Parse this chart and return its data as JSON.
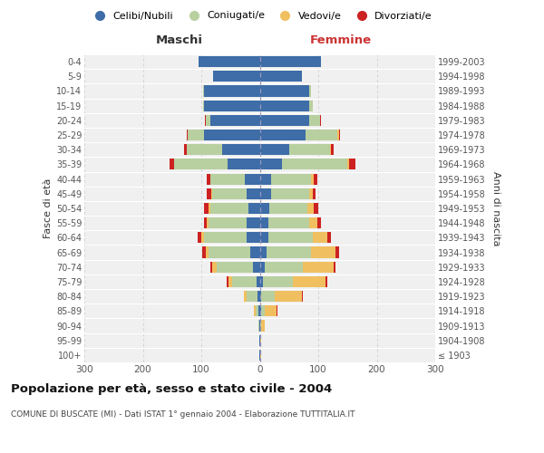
{
  "age_groups": [
    "100+",
    "95-99",
    "90-94",
    "85-89",
    "80-84",
    "75-79",
    "70-74",
    "65-69",
    "60-64",
    "55-59",
    "50-54",
    "45-49",
    "40-44",
    "35-39",
    "30-34",
    "25-29",
    "20-24",
    "15-19",
    "10-14",
    "5-9",
    "0-4"
  ],
  "birth_years": [
    "≤ 1903",
    "1904-1908",
    "1909-1913",
    "1914-1918",
    "1919-1923",
    "1924-1928",
    "1929-1933",
    "1934-1938",
    "1939-1943",
    "1944-1948",
    "1949-1953",
    "1954-1958",
    "1959-1963",
    "1964-1968",
    "1969-1973",
    "1974-1978",
    "1979-1983",
    "1984-1988",
    "1989-1993",
    "1994-1998",
    "1999-2003"
  ],
  "maschi": {
    "celibi": [
      1,
      1,
      1,
      2,
      4,
      6,
      12,
      16,
      22,
      22,
      20,
      22,
      26,
      55,
      65,
      95,
      85,
      95,
      95,
      80,
      105
    ],
    "coniugati": [
      0,
      0,
      1,
      5,
      18,
      42,
      62,
      72,
      73,
      65,
      65,
      60,
      58,
      92,
      60,
      28,
      8,
      2,
      2,
      0,
      0
    ],
    "vedovi": [
      0,
      0,
      1,
      3,
      5,
      6,
      7,
      5,
      5,
      3,
      2,
      1,
      1,
      0,
      0,
      0,
      0,
      0,
      0,
      0,
      0
    ],
    "divorziati": [
      0,
      0,
      0,
      0,
      0,
      3,
      4,
      6,
      6,
      6,
      8,
      8,
      6,
      8,
      5,
      2,
      1,
      0,
      0,
      0,
      0
    ]
  },
  "femmine": {
    "nubili": [
      1,
      1,
      1,
      2,
      3,
      5,
      8,
      12,
      14,
      14,
      17,
      20,
      20,
      38,
      50,
      78,
      85,
      85,
      85,
      72,
      105
    ],
    "coniugate": [
      0,
      0,
      2,
      6,
      22,
      52,
      66,
      76,
      76,
      70,
      65,
      65,
      68,
      112,
      70,
      55,
      18,
      5,
      2,
      0,
      0
    ],
    "vedove": [
      1,
      2,
      6,
      20,
      47,
      56,
      52,
      42,
      26,
      15,
      10,
      5,
      5,
      3,
      2,
      2,
      0,
      0,
      0,
      0,
      0
    ],
    "divorziate": [
      0,
      0,
      0,
      2,
      2,
      3,
      3,
      5,
      5,
      5,
      8,
      5,
      5,
      10,
      5,
      2,
      1,
      0,
      0,
      0,
      0
    ]
  },
  "colors": {
    "celibi_nubili": "#3e6da8",
    "coniugati_e": "#b8cfa0",
    "vedovi_e": "#f0c060",
    "divorziati_e": "#cc2222"
  },
  "xlim": 300,
  "title": "Popolazione per età, sesso e stato civile - 2004",
  "subtitle": "COMUNE DI BUSCATE (MI) - Dati ISTAT 1° gennaio 2004 - Elaborazione TUTTITALIA.IT",
  "ylabel_left": "Fasce di età",
  "ylabel_right": "Anni di nascita",
  "xlabel_left": "Maschi",
  "xlabel_right": "Femmine",
  "bg_color": "#f0f0f0",
  "grid_color": "#d0d0d0"
}
